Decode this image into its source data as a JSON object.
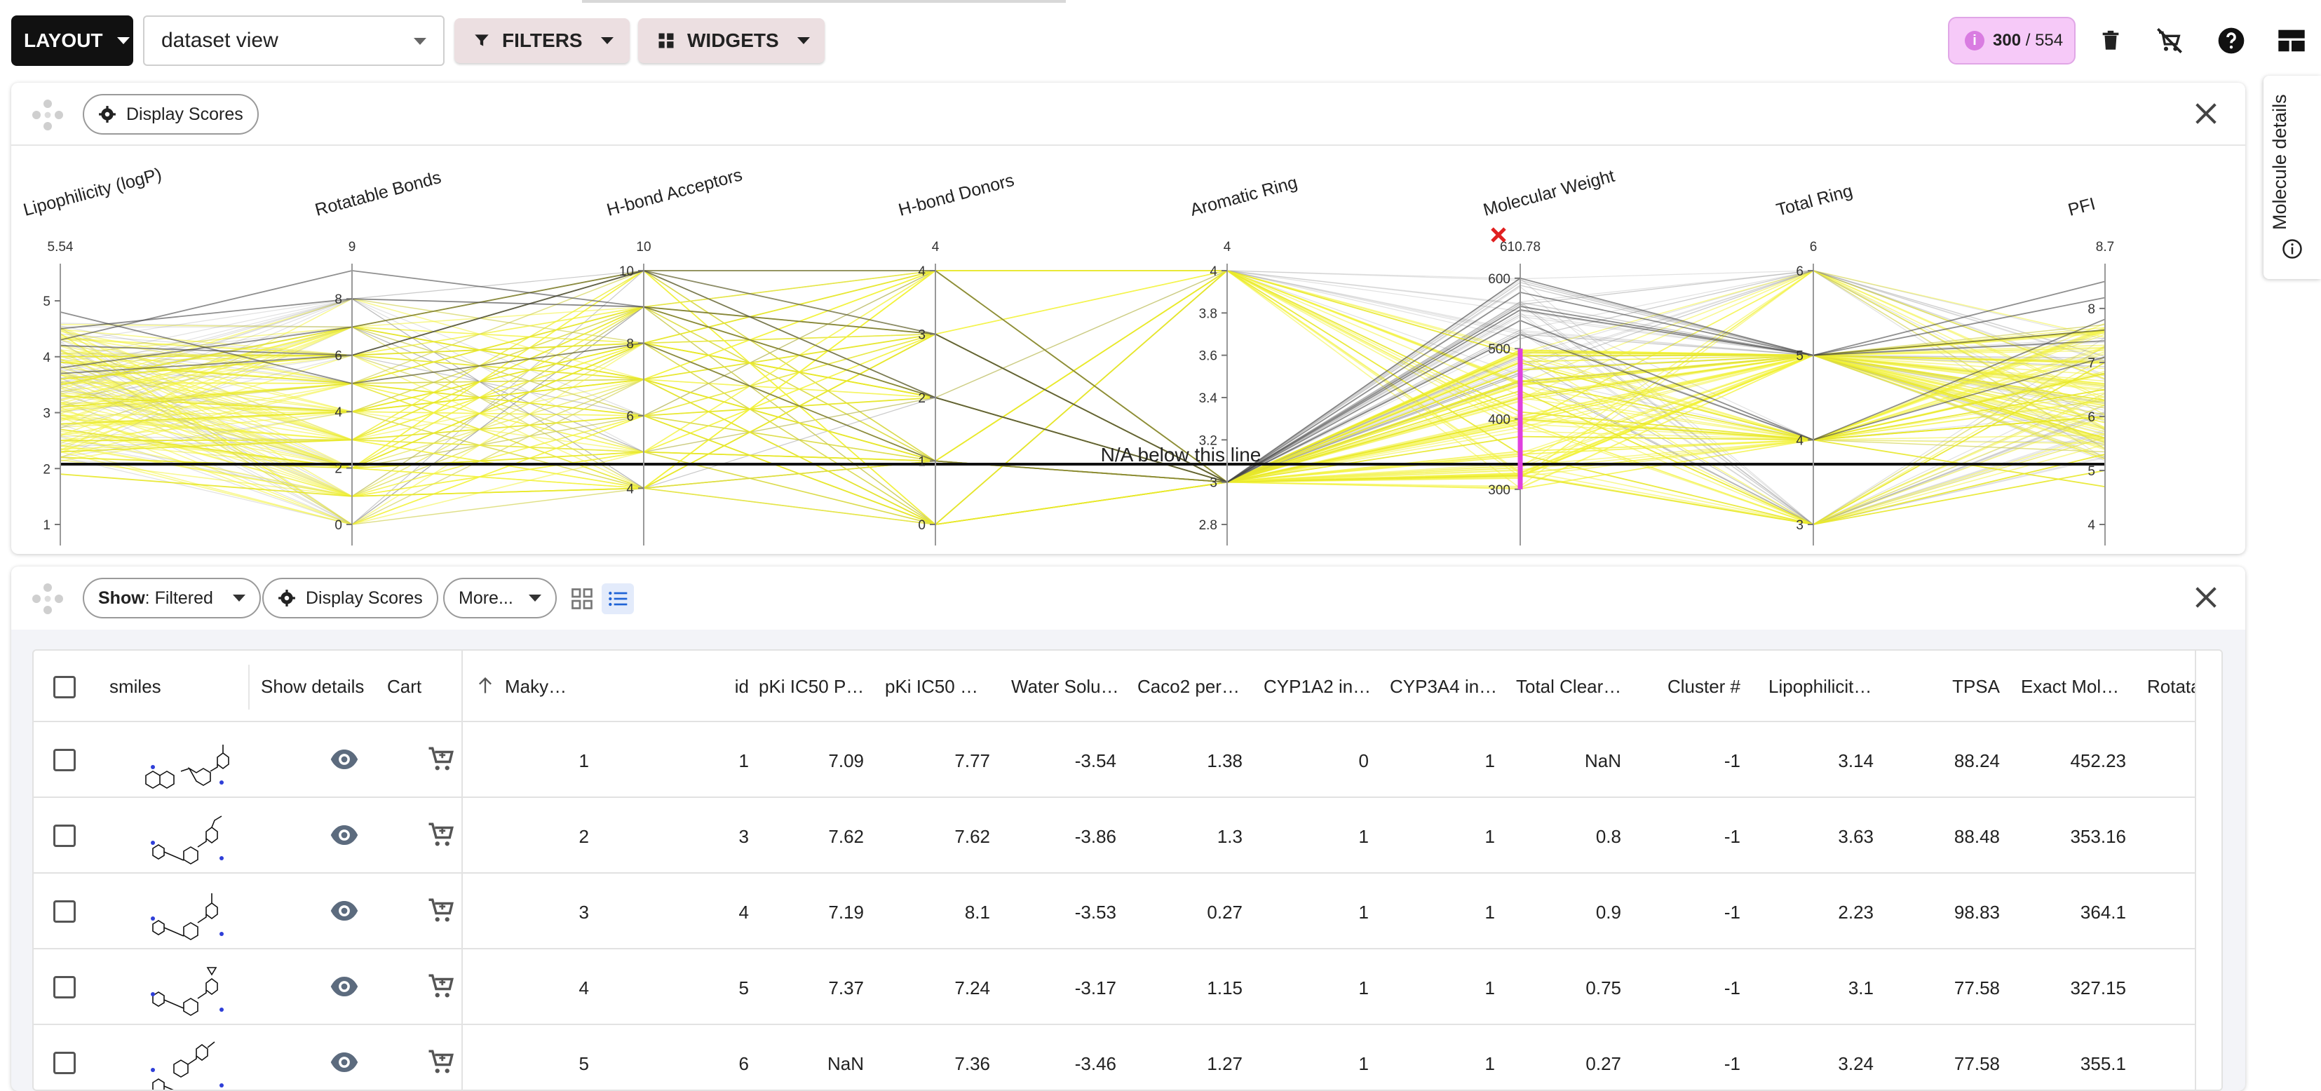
{
  "toolbar": {
    "layout_label": "LAYOUT",
    "view_value": "dataset view",
    "filters_label": "FILTERS",
    "widgets_label": "WIDGETS",
    "counter_selected": "300",
    "counter_sep": " / ",
    "counter_total": "554",
    "counter_info": "i"
  },
  "side_panel": {
    "label": "Molecule details"
  },
  "pcp_panel": {
    "display_scores_label": "Display Scores",
    "na_label": "N/A below this line"
  },
  "chart_data": {
    "type": "parallel-coordinates",
    "axes": [
      {
        "name": "Lipophilicity (logP)",
        "max_label": "5.54",
        "ticks": [
          "5",
          "4",
          "3",
          "2",
          "1"
        ]
      },
      {
        "name": "Rotatable Bonds",
        "max_label": "9",
        "ticks": [
          "8",
          "6",
          "4",
          "2",
          "0"
        ]
      },
      {
        "name": "H-bond Acceptors",
        "max_label": "10",
        "ticks": [
          "10",
          "8",
          "6",
          "4"
        ]
      },
      {
        "name": "H-bond Donors",
        "max_label": "4",
        "ticks": [
          "4",
          "3",
          "2",
          "1",
          "0"
        ]
      },
      {
        "name": "Aromatic Ring",
        "max_label": "4",
        "ticks": [
          "4",
          "3.8",
          "3.6",
          "3.4",
          "3.2",
          "3",
          "2.8"
        ]
      },
      {
        "name": "Molecular Weight",
        "max_label": "610.78",
        "ticks": [
          "600",
          "500",
          "400",
          "300"
        ],
        "filtered": true,
        "brush_range": [
          300,
          500
        ]
      },
      {
        "name": "Total Ring",
        "max_label": "6",
        "ticks": [
          "6",
          "5",
          "4",
          "3"
        ]
      },
      {
        "name": "PFI",
        "max_label": "8.7",
        "ticks": [
          "8",
          "7",
          "6",
          "5",
          "4"
        ]
      }
    ],
    "series": [
      {
        "values": [
          2.8,
          4,
          8,
          2,
          3,
          480,
          4,
          6
        ]
      },
      {
        "values": [
          3.6,
          6,
          7,
          3,
          3,
          470,
          5,
          7
        ]
      },
      {
        "values": [
          2.2,
          2,
          5,
          1,
          4,
          350,
          3,
          5
        ]
      },
      {
        "values": [
          3.1,
          5,
          9,
          2,
          3,
          455,
          4,
          6.5
        ]
      },
      {
        "values": [
          2.5,
          3,
          6,
          0,
          3,
          320,
          3,
          5.3
        ]
      },
      {
        "values": [
          4.0,
          6,
          8,
          4,
          4,
          490,
          5,
          7.6
        ]
      },
      {
        "values": [
          1.9,
          1,
          4,
          3,
          3,
          400,
          4,
          4.7
        ]
      },
      {
        "values": [
          3.3,
          4,
          7,
          1,
          3,
          430,
          5,
          6.3
        ]
      },
      {
        "values": [
          2.7,
          2,
          8,
          2,
          3,
          375,
          4,
          6
        ]
      },
      {
        "values": [
          3.9,
          5,
          6,
          2,
          3,
          440,
          3,
          7
        ]
      },
      {
        "values": [
          2.3,
          3,
          9,
          3,
          3,
          495,
          5,
          5.6
        ]
      },
      {
        "values": [
          3.5,
          7,
          7,
          0,
          4,
          410,
          4,
          6.8
        ]
      },
      {
        "values": [
          4.2,
          6,
          10,
          2,
          3,
          560,
          5,
          7.4
        ]
      },
      {
        "values": [
          4.5,
          8,
          9,
          3,
          3,
          580,
          5,
          8.2
        ]
      },
      {
        "values": [
          3.8,
          7,
          10,
          4,
          3,
          540,
          4,
          7.8
        ]
      },
      {
        "values": [
          4.8,
          5,
          8,
          1,
          3,
          600,
          5,
          8.5
        ]
      },
      {
        "values": [
          4.3,
          9,
          9,
          2,
          3,
          520,
          4,
          7.1
        ]
      },
      {
        "values": [
          3.7,
          6,
          10,
          3,
          3,
          555,
          5,
          7.6
        ]
      }
    ]
  },
  "table_panel": {
    "show_label": "Show",
    "show_value": ": Filtered",
    "display_scores_label": "Display Scores",
    "more_label": "More..."
  },
  "table": {
    "columns": {
      "smiles": "smiles",
      "show_details": "Show details",
      "cart": "Cart",
      "maky": "Maky…",
      "id": "id",
      "pki1": "pKi IC50 P…",
      "pki2": "pKi IC50 …",
      "water": "Water Solu…",
      "caco2": "Caco2 per…",
      "cyp1a2": "CYP1A2 in…",
      "cyp3a4": "CYP3A4 in…",
      "clear": "Total Clear…",
      "cluster": "Cluster #",
      "lipo": "Lipophilicit…",
      "tpsa": "TPSA",
      "exact": "Exact Mol…",
      "rotata": "Rotata"
    },
    "rows": [
      {
        "maky": "1",
        "id": "1",
        "pki1": "7.09",
        "pki2": "7.77",
        "water": "-3.54",
        "caco2": "1.38",
        "cyp1a2": "0",
        "cyp3a4": "1",
        "clear": "NaN",
        "cluster": "-1",
        "lipo": "3.14",
        "tpsa": "88.24",
        "exact": "452.23"
      },
      {
        "maky": "2",
        "id": "3",
        "pki1": "7.62",
        "pki2": "7.62",
        "water": "-3.86",
        "caco2": "1.3",
        "cyp1a2": "1",
        "cyp3a4": "1",
        "clear": "0.8",
        "cluster": "-1",
        "lipo": "3.63",
        "tpsa": "88.48",
        "exact": "353.16"
      },
      {
        "maky": "3",
        "id": "4",
        "pki1": "7.19",
        "pki2": "8.1",
        "water": "-3.53",
        "caco2": "0.27",
        "cyp1a2": "1",
        "cyp3a4": "1",
        "clear": "0.9",
        "cluster": "-1",
        "lipo": "2.23",
        "tpsa": "98.83",
        "exact": "364.1"
      },
      {
        "maky": "4",
        "id": "5",
        "pki1": "7.37",
        "pki2": "7.24",
        "water": "-3.17",
        "caco2": "1.15",
        "cyp1a2": "1",
        "cyp3a4": "1",
        "clear": "0.75",
        "cluster": "-1",
        "lipo": "3.1",
        "tpsa": "77.58",
        "exact": "327.15"
      },
      {
        "maky": "5",
        "id": "6",
        "pki1": "NaN",
        "pki2": "7.36",
        "water": "-3.46",
        "caco2": "1.27",
        "cyp1a2": "1",
        "cyp3a4": "1",
        "clear": "0.27",
        "cluster": "-1",
        "lipo": "3.24",
        "tpsa": "77.58",
        "exact": "355.1"
      }
    ]
  },
  "colors": {
    "selected_line": "#f2f23a",
    "unselected_line": "#555555",
    "brush": "#e040e0",
    "filter_x": "#e02020",
    "counter_bg": "#f6c9f8"
  }
}
